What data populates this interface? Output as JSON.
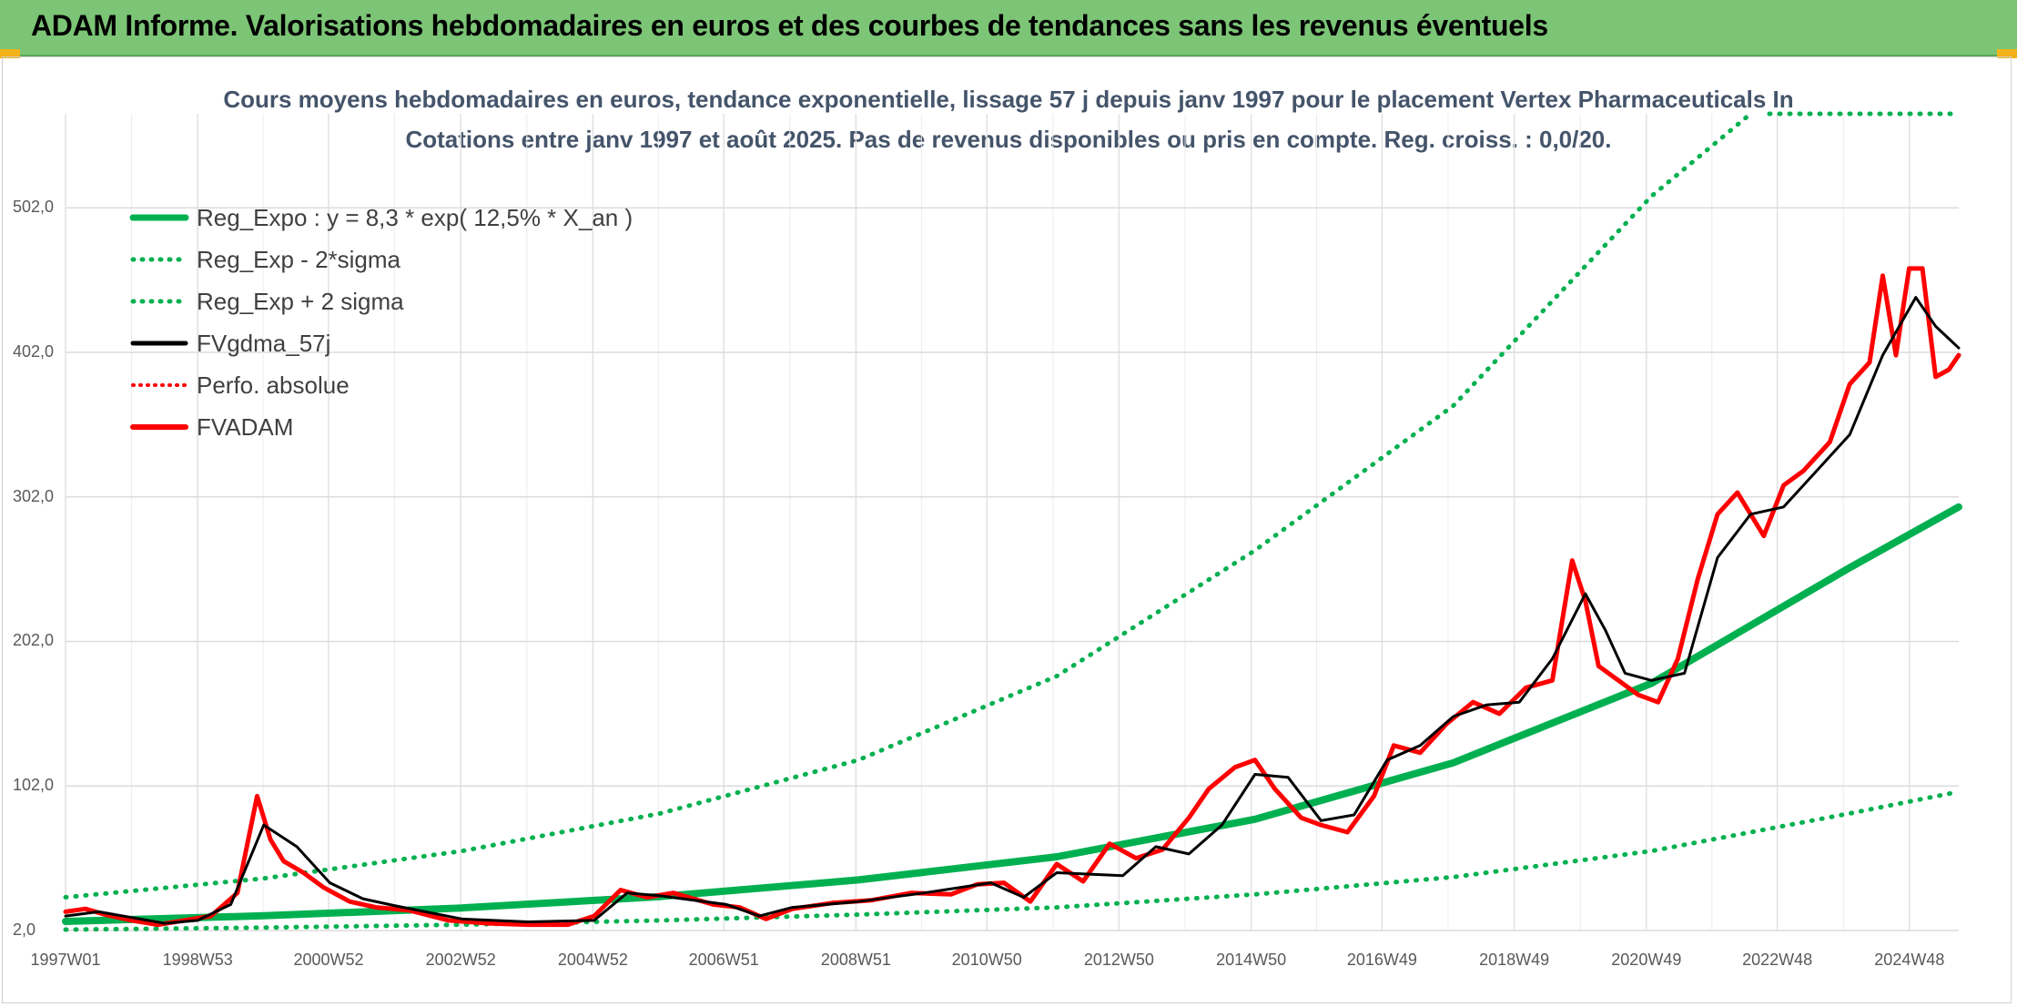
{
  "header": {
    "title": "ADAM Informe. Valorisations hebdomadaires en euros et des courbes de tendances sans les revenus éventuels"
  },
  "colors": {
    "header_bg": "#7cc576",
    "reg_expo": "#00b050",
    "fvgdma": "#000000",
    "fvadam": "#ff0000",
    "perfo": "#ff0000"
  },
  "chart_data": {
    "type": "line",
    "title": "Cours moyens hebdomadaires en euros, tendance exponentielle, lissage 57 j depuis janv 1997 pour le placement Vertex Pharmaceuticals In",
    "subtitle": "Cotations entre janv 1997 et août 2025. Pas de revenus disponibles ou pris en compte. Reg. croiss. : 0,0/20.",
    "ylim": [
      2,
      567
    ],
    "yticks": [
      "2,0",
      "102,0",
      "202,0",
      "302,0",
      "402,0",
      "502,0"
    ],
    "xlim": [
      1997.0,
      2025.65
    ],
    "xticks": [
      "1997W01",
      "1998W53",
      "2000W52",
      "2002W52",
      "2004W52",
      "2006W51",
      "2008W51",
      "2010W50",
      "2012W50",
      "2014W50",
      "2016W49",
      "2018W49",
      "2020W49",
      "2022W48",
      "2024W48"
    ],
    "grid": true,
    "legend_position": "top-left",
    "legend": [
      {
        "label": "Reg_Expo : y = 8,3 * exp( 12,5% *  X_an )",
        "style": "solid-green"
      },
      {
        "label": "Reg_Exp - 2*sigma",
        "style": "dotted-green"
      },
      {
        "label": "Reg_Exp + 2 sigma",
        "style": "dotted-green"
      },
      {
        "label": "FVgdma_57j",
        "style": "solid-black"
      },
      {
        "label": "Perfo. absolue",
        "style": "dotted-red"
      },
      {
        "label": "FVADAM",
        "style": "solid-red"
      }
    ],
    "series": [
      {
        "name": "Reg_Expo : y = 8,3 * exp( 12,5% *  X_an )",
        "x": [
          1997.0,
          2000.0,
          2003.0,
          2006.0,
          2009.0,
          2012.0,
          2015.0,
          2018.0,
          2021.0,
          2024.0,
          2025.65
        ],
        "values": [
          8.3,
          12.2,
          17.6,
          25.5,
          37.0,
          53.0,
          79.0,
          118.0,
          173.0,
          253.0,
          295.0
        ]
      },
      {
        "name": "Reg_Exp - 2*sigma",
        "x": [
          1997.0,
          2000.0,
          2003.0,
          2006.0,
          2009.0,
          2012.0,
          2015.0,
          2018.0,
          2021.0,
          2024.0,
          2025.65
        ],
        "values": [
          2.6,
          4.0,
          6.0,
          9.0,
          13.0,
          18.0,
          27.0,
          39.0,
          57.0,
          83.0,
          98.0
        ]
      },
      {
        "name": "Reg_Exp + 2 sigma",
        "x": [
          1997.0,
          2000.0,
          2003.0,
          2006.0,
          2009.0,
          2012.0,
          2015.0,
          2018.0,
          2021.0,
          2022.5
        ],
        "values": [
          25.0,
          38.0,
          57.0,
          83.0,
          120.0,
          178.0,
          265.0,
          365.0,
          510.0,
          567.0
        ]
      },
      {
        "name": "FVgdma_57j",
        "x": [
          1997.0,
          1997.5,
          1998.0,
          1998.5,
          1999.0,
          1999.5,
          2000.0,
          2000.5,
          2001.0,
          2001.5,
          2002.0,
          2003.0,
          2004.0,
          2005.0,
          2005.5,
          2006.0,
          2007.0,
          2007.5,
          2008.0,
          2009.0,
          2010.0,
          2011.0,
          2011.5,
          2012.0,
          2013.0,
          2013.5,
          2014.0,
          2014.5,
          2015.0,
          2015.5,
          2016.0,
          2016.5,
          2017.0,
          2017.5,
          2018.0,
          2018.5,
          2019.0,
          2019.5,
          2020.0,
          2020.3,
          2020.6,
          2021.0,
          2021.5,
          2022.0,
          2022.5,
          2023.0,
          2023.5,
          2024.0,
          2024.5,
          2025.0,
          2025.3,
          2025.65
        ],
        "values": [
          12.0,
          15.0,
          11.0,
          7.0,
          9.0,
          20.0,
          75.0,
          60.0,
          35.0,
          24.0,
          19.0,
          10.0,
          8.0,
          9.0,
          28.0,
          26.0,
          20.0,
          12.0,
          18.0,
          22.0,
          28.0,
          35.0,
          25.0,
          42.0,
          40.0,
          60.0,
          55.0,
          75.0,
          110.0,
          108.0,
          78.0,
          82.0,
          120.0,
          130.0,
          150.0,
          158.0,
          160.0,
          190.0,
          235.0,
          210.0,
          180.0,
          175.0,
          180.0,
          260.0,
          290.0,
          295.0,
          320.0,
          345.0,
          400.0,
          440.0,
          420.0,
          405.0
        ]
      },
      {
        "name": "FVADAM",
        "x": [
          1997.0,
          1997.3,
          1997.6,
          1998.0,
          1998.4,
          1998.8,
          1999.2,
          1999.6,
          1999.9,
          2000.1,
          2000.3,
          2000.6,
          2000.9,
          2001.3,
          2001.7,
          2002.2,
          2002.8,
          2003.4,
          2004.0,
          2004.6,
          2005.0,
          2005.4,
          2005.8,
          2006.2,
          2006.8,
          2007.2,
          2007.6,
          2008.0,
          2008.6,
          2009.2,
          2009.8,
          2010.4,
          2010.8,
          2011.2,
          2011.6,
          2012.0,
          2012.4,
          2012.8,
          2013.2,
          2013.6,
          2014.0,
          2014.3,
          2014.7,
          2015.0,
          2015.3,
          2015.7,
          2016.0,
          2016.4,
          2016.8,
          2017.1,
          2017.5,
          2017.9,
          2018.3,
          2018.7,
          2019.1,
          2019.5,
          2019.8,
          2020.0,
          2020.2,
          2020.5,
          2020.8,
          2021.1,
          2021.4,
          2021.7,
          2022.0,
          2022.3,
          2022.7,
          2023.0,
          2023.3,
          2023.7,
          2024.0,
          2024.3,
          2024.5,
          2024.7,
          2024.9,
          2025.1,
          2025.3,
          2025.5,
          2025.65
        ],
        "values": [
          15.0,
          17.0,
          13.0,
          9.0,
          6.0,
          9.0,
          12.0,
          28.0,
          95.0,
          65.0,
          50.0,
          42.0,
          32.0,
          22.0,
          18.0,
          16.0,
          9.0,
          7.0,
          6.0,
          6.0,
          12.0,
          30.0,
          25.0,
          28.0,
          20.0,
          18.0,
          10.0,
          17.0,
          21.0,
          23.0,
          28.0,
          27.0,
          34.0,
          35.0,
          22.0,
          48.0,
          36.0,
          62.0,
          52.0,
          58.0,
          80.0,
          100.0,
          115.0,
          120.0,
          100.0,
          80.0,
          75.0,
          70.0,
          95.0,
          130.0,
          125.0,
          145.0,
          160.0,
          152.0,
          170.0,
          175.0,
          258.0,
          230.0,
          185.0,
          175.0,
          165.0,
          160.0,
          190.0,
          245.0,
          290.0,
          305.0,
          275.0,
          310.0,
          320.0,
          340.0,
          380.0,
          395.0,
          455.0,
          400.0,
          460.0,
          460.0,
          385.0,
          390.0,
          400.0
        ]
      }
    ]
  }
}
